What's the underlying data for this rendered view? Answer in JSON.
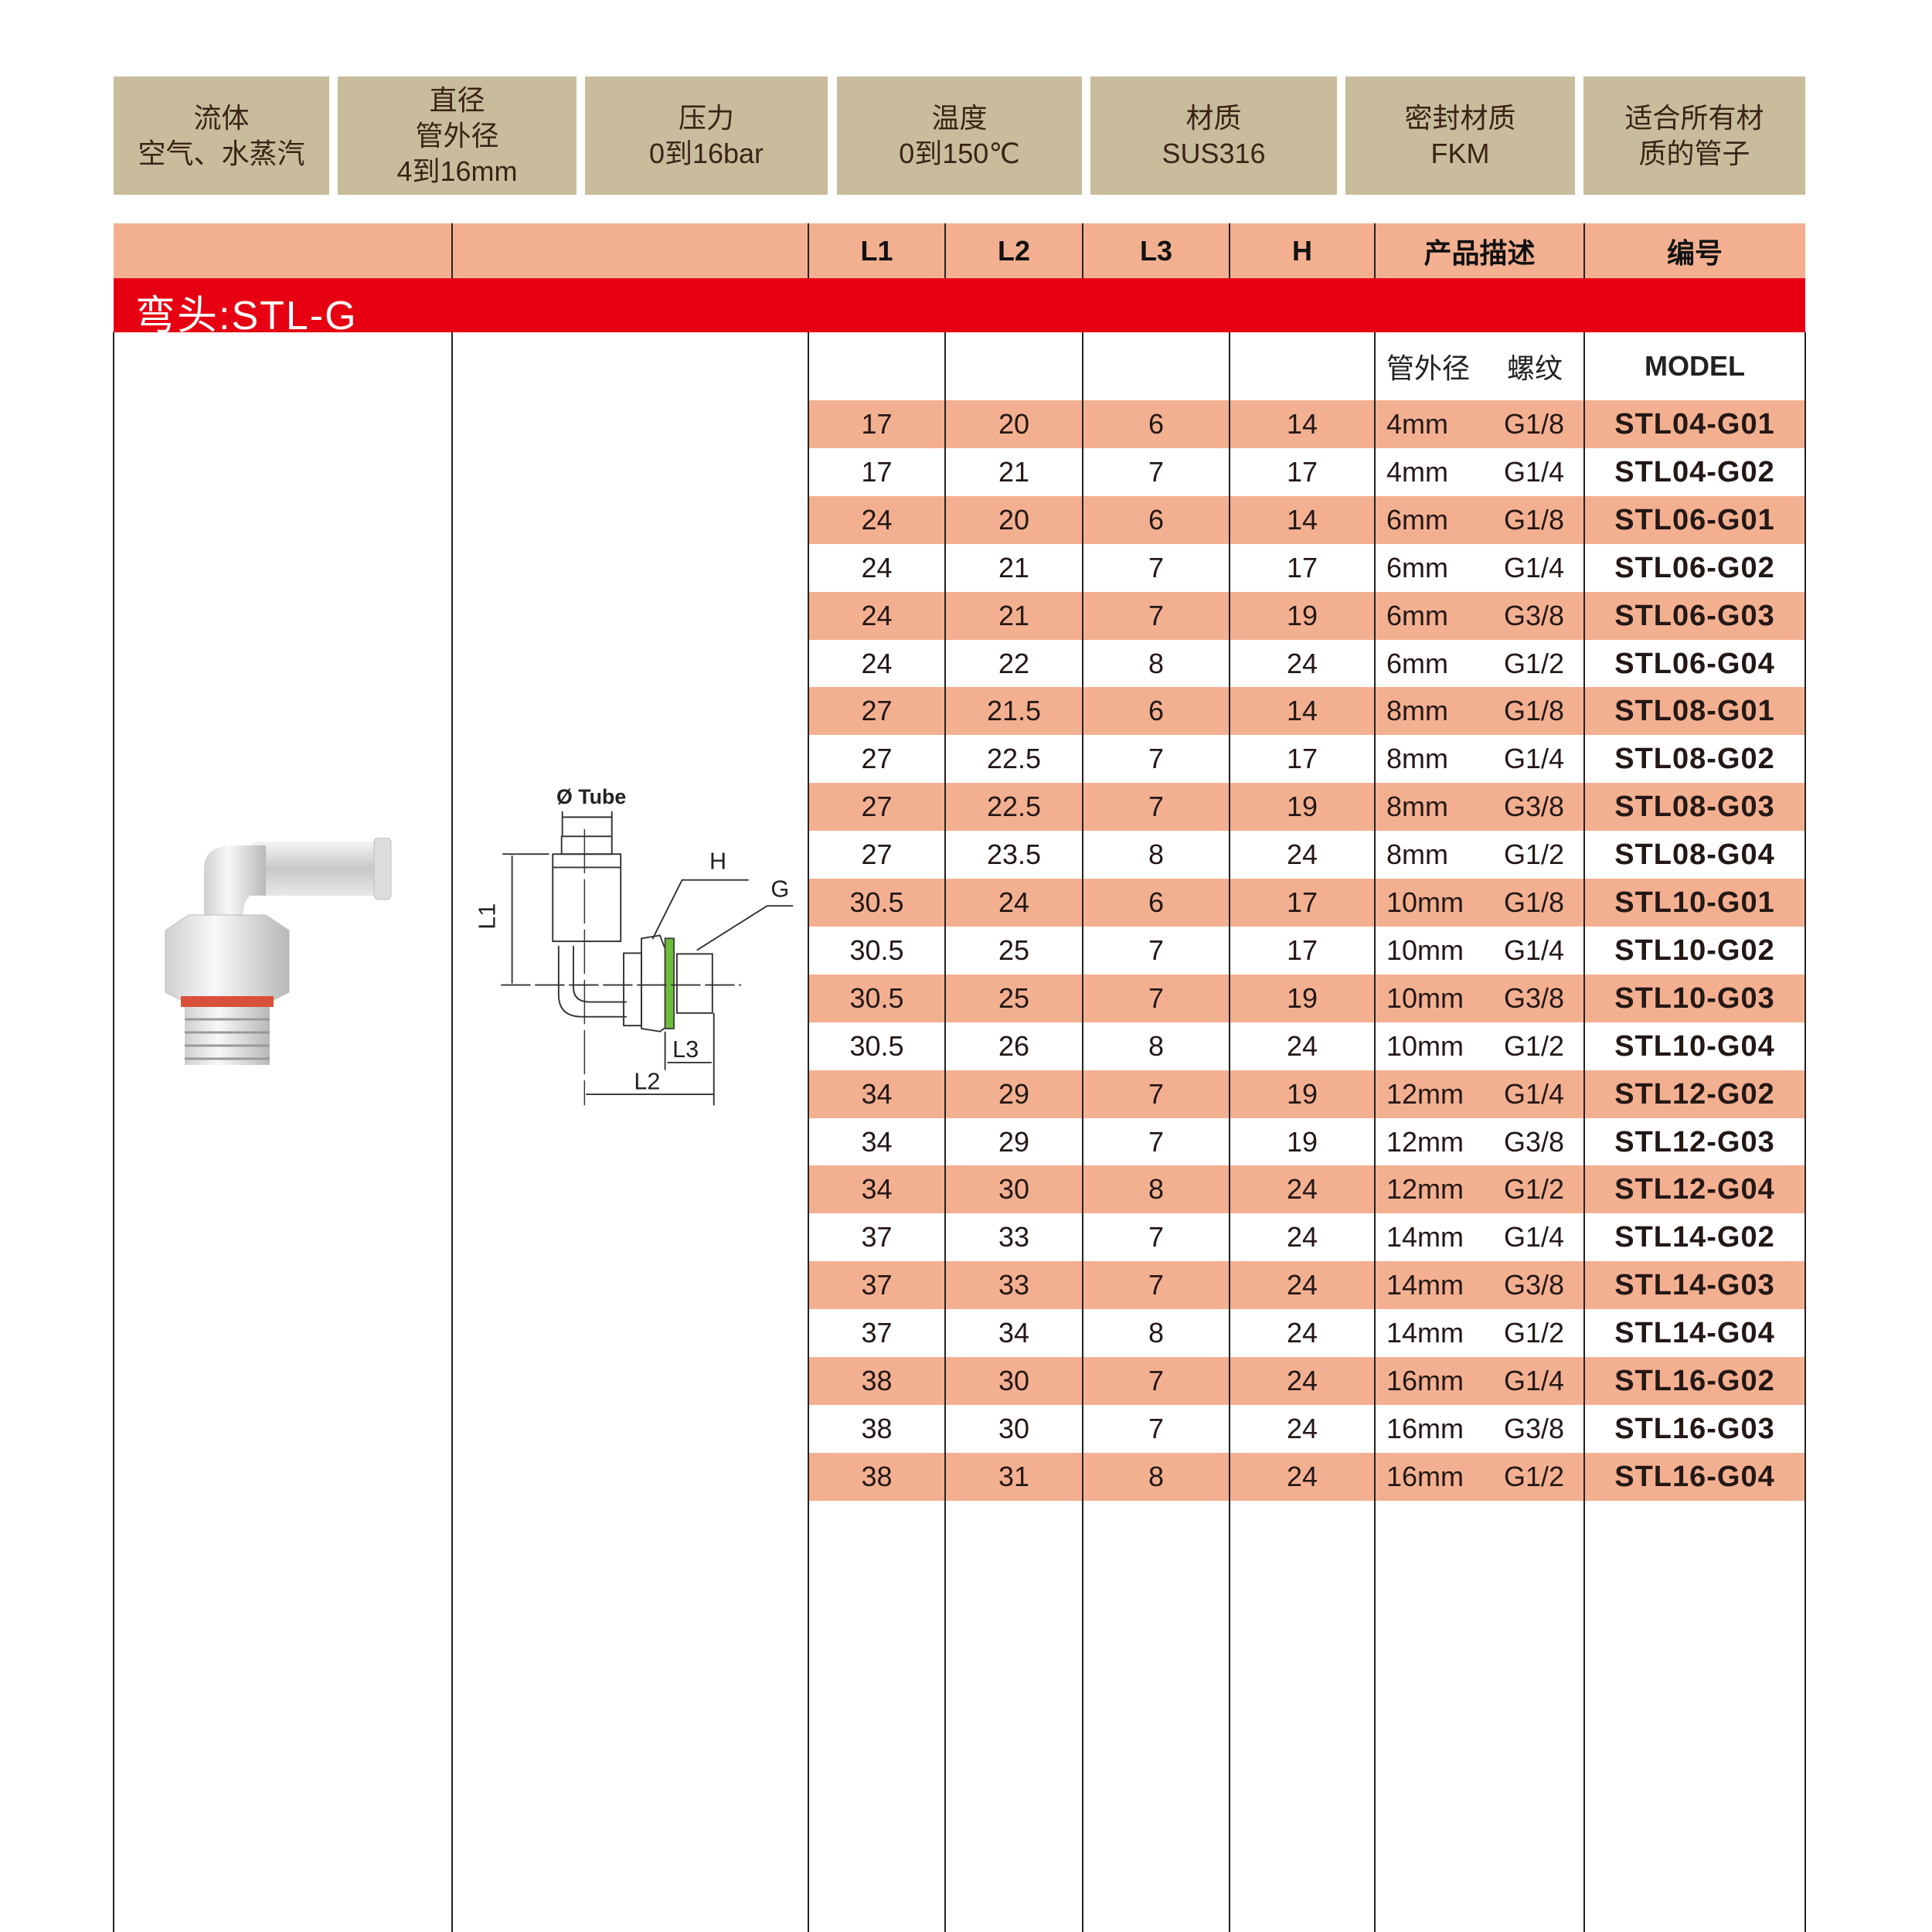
{
  "specs": [
    {
      "title": "流体",
      "value": "空气、水蒸汽"
    },
    {
      "title": "直径",
      "value": "管外径",
      "extra": "4到16mm"
    },
    {
      "title": "压力",
      "value": "0到16bar"
    },
    {
      "title": "温度",
      "value": "0到150℃"
    },
    {
      "title": "材质",
      "value": "SUS316"
    },
    {
      "title": "密封材质",
      "value": "FKM"
    },
    {
      "title": "适合所有材",
      "value": "质的管子"
    }
  ],
  "table": {
    "columns": [
      "L1",
      "L2",
      "L3",
      "H",
      "产品描述",
      "编号"
    ],
    "section_title": "弯头:STL-G",
    "sub_headers": {
      "tube_od": "管外径",
      "thread": "螺纹",
      "model": "MODEL"
    },
    "rows": [
      [
        "17",
        "20",
        "6",
        "14",
        "4mm",
        "G1/8",
        "STL04-G01"
      ],
      [
        "17",
        "21",
        "7",
        "17",
        "4mm",
        "G1/4",
        "STL04-G02"
      ],
      [
        "24",
        "20",
        "6",
        "14",
        "6mm",
        "G1/8",
        "STL06-G01"
      ],
      [
        "24",
        "21",
        "7",
        "17",
        "6mm",
        "G1/4",
        "STL06-G02"
      ],
      [
        "24",
        "21",
        "7",
        "19",
        "6mm",
        "G3/8",
        "STL06-G03"
      ],
      [
        "24",
        "22",
        "8",
        "24",
        "6mm",
        "G1/2",
        "STL06-G04"
      ],
      [
        "27",
        "21.5",
        "6",
        "14",
        "8mm",
        "G1/8",
        "STL08-G01"
      ],
      [
        "27",
        "22.5",
        "7",
        "17",
        "8mm",
        "G1/4",
        "STL08-G02"
      ],
      [
        "27",
        "22.5",
        "7",
        "19",
        "8mm",
        "G3/8",
        "STL08-G03"
      ],
      [
        "27",
        "23.5",
        "8",
        "24",
        "8mm",
        "G1/2",
        "STL08-G04"
      ],
      [
        "30.5",
        "24",
        "6",
        "17",
        "10mm",
        "G1/8",
        "STL10-G01"
      ],
      [
        "30.5",
        "25",
        "7",
        "17",
        "10mm",
        "G1/4",
        "STL10-G02"
      ],
      [
        "30.5",
        "25",
        "7",
        "19",
        "10mm",
        "G3/8",
        "STL10-G03"
      ],
      [
        "30.5",
        "26",
        "8",
        "24",
        "10mm",
        "G1/2",
        "STL10-G04"
      ],
      [
        "34",
        "29",
        "7",
        "19",
        "12mm",
        "G1/4",
        "STL12-G02"
      ],
      [
        "34",
        "29",
        "7",
        "19",
        "12mm",
        "G3/8",
        "STL12-G03"
      ],
      [
        "34",
        "30",
        "8",
        "24",
        "12mm",
        "G1/2",
        "STL12-G04"
      ],
      [
        "37",
        "33",
        "7",
        "24",
        "14mm",
        "G1/4",
        "STL14-G02"
      ],
      [
        "37",
        "33",
        "7",
        "24",
        "14mm",
        "G3/8",
        "STL14-G03"
      ],
      [
        "37",
        "34",
        "8",
        "24",
        "14mm",
        "G1/2",
        "STL14-G04"
      ],
      [
        "38",
        "30",
        "7",
        "24",
        "16mm",
        "G1/4",
        "STL16-G02"
      ],
      [
        "38",
        "30",
        "7",
        "24",
        "16mm",
        "G3/8",
        "STL16-G03"
      ],
      [
        "38",
        "31",
        "8",
        "24",
        "16mm",
        "G1/2",
        "STL16-G04"
      ]
    ]
  },
  "diagram": {
    "tube_label": "Ø Tube",
    "labels": [
      "H",
      "G",
      "L1",
      "L2",
      "L3"
    ]
  },
  "colors": {
    "spec_bg": "#c9bc9c",
    "header_bg": "#f3b091",
    "section_red": "#e60012",
    "seal_green": "#6cbf3a",
    "oring_red": "#d9503a"
  }
}
